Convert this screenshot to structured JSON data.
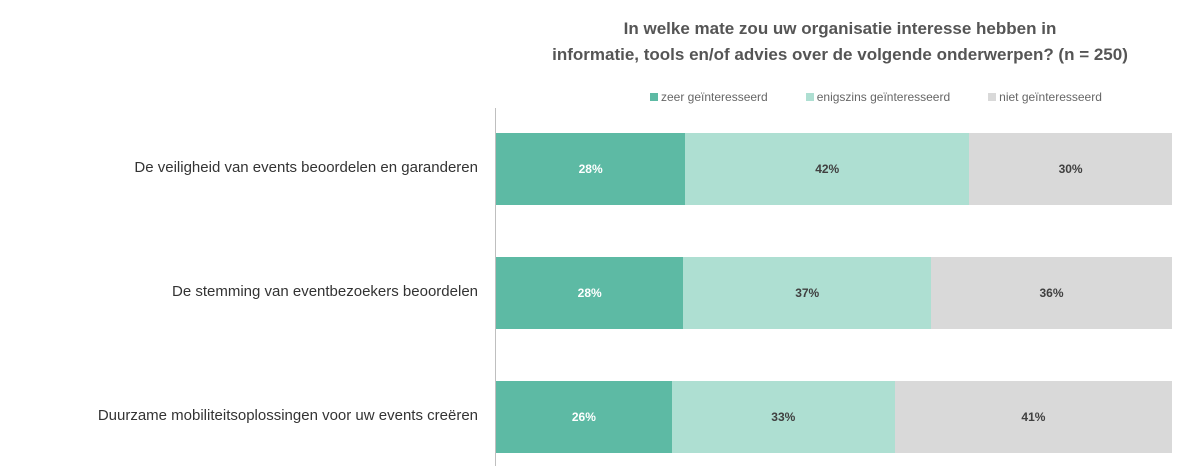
{
  "chart_data": {
    "type": "bar",
    "orientation": "horizontal",
    "stacked": true,
    "title": "In welke mate zou uw organisatie interesse hebben in informatie, tools en/of advies over de volgende onderwerpen? (n = 250)",
    "title_lines": [
      "In welke mate zou uw organisatie interesse hebben in",
      "informatie, tools en/of advies over de volgende onderwerpen? (n = 250)"
    ],
    "categories": [
      "De veiligheid van events beoordelen en garanderen",
      "De stemming van eventbezoekers beoordelen",
      "Duurzame mobiliteitsoplossingen voor uw events creëren"
    ],
    "series": [
      {
        "name": "zeer geïnteresseerd",
        "color": "#5dbaa4",
        "label_color": "#ffffff",
        "values": [
          28,
          28,
          26
        ],
        "labels": [
          "28%",
          "28%",
          "26%"
        ]
      },
      {
        "name": "enigszins geïnteresseerd",
        "color": "#aedfd2",
        "label_color": "#404040",
        "values": [
          42,
          37,
          33
        ],
        "labels": [
          "42%",
          "37%",
          "33%"
        ]
      },
      {
        "name": "niet geïnteresseerd",
        "color": "#d9d9d9",
        "label_color": "#404040",
        "values": [
          30,
          36,
          41
        ],
        "labels": [
          "30%",
          "36%",
          "41%"
        ]
      }
    ],
    "legend_position": "top",
    "grid": false
  }
}
